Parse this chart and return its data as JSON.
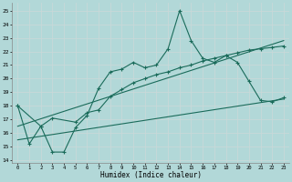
{
  "xlabel": "Humidex (Indice chaleur)",
  "bg_color": "#b2d8d8",
  "grid_color": "#d0e8e8",
  "line_color": "#1a6b5a",
  "xlim": [
    -0.5,
    23.5
  ],
  "ylim": [
    13.8,
    25.6
  ],
  "yticks": [
    14,
    15,
    16,
    17,
    18,
    19,
    20,
    21,
    22,
    23,
    24,
    25
  ],
  "xticks": [
    0,
    1,
    2,
    3,
    4,
    5,
    6,
    7,
    8,
    9,
    10,
    11,
    12,
    13,
    14,
    15,
    16,
    17,
    18,
    19,
    20,
    21,
    22,
    23
  ],
  "line1_x": [
    0,
    1,
    2,
    3,
    4,
    5,
    6,
    7,
    8,
    9,
    10,
    11,
    12,
    13,
    14,
    15,
    16,
    17,
    18,
    19,
    20,
    21,
    22,
    23
  ],
  "line1_y": [
    18.0,
    15.2,
    16.5,
    14.6,
    14.6,
    16.4,
    17.3,
    19.3,
    20.5,
    20.7,
    21.2,
    20.8,
    21.0,
    22.2,
    25.0,
    22.8,
    21.5,
    21.2,
    21.7,
    21.2,
    19.8,
    18.4,
    18.3,
    18.6
  ],
  "line2_x": [
    0,
    2,
    3,
    5,
    6,
    7,
    8,
    9,
    10,
    11,
    12,
    13,
    14,
    15,
    16,
    17,
    18,
    19,
    20,
    21,
    22,
    23
  ],
  "line2_y": [
    18.0,
    16.5,
    17.1,
    16.8,
    17.5,
    17.7,
    18.7,
    19.2,
    19.7,
    20.0,
    20.3,
    20.5,
    20.8,
    21.0,
    21.3,
    21.5,
    21.7,
    21.9,
    22.1,
    22.2,
    22.3,
    22.4
  ],
  "line3_x": [
    0,
    23
  ],
  "line3_y": [
    16.5,
    22.8
  ],
  "line4_x": [
    0,
    23
  ],
  "line4_y": [
    15.5,
    18.5
  ]
}
